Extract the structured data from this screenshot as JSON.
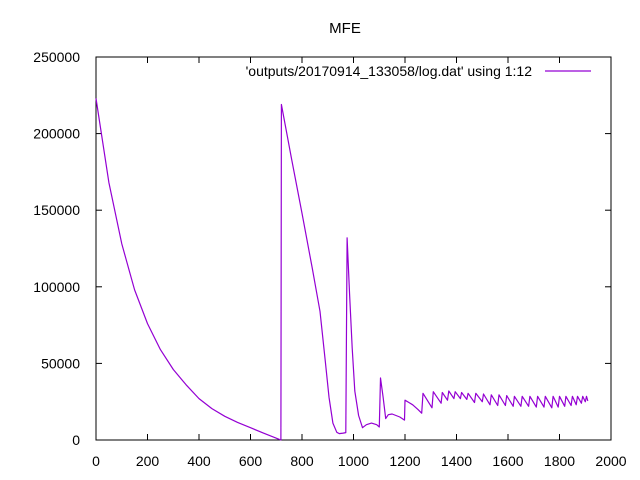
{
  "chart_data": {
    "type": "line",
    "title": "MFE",
    "xlabel": "",
    "ylabel": "",
    "xlim": [
      0,
      2000
    ],
    "ylim": [
      0,
      250000
    ],
    "xticks": [
      0,
      200,
      400,
      600,
      800,
      1000,
      1200,
      1400,
      1600,
      1800,
      2000
    ],
    "yticks": [
      0,
      50000,
      100000,
      150000,
      200000,
      250000
    ],
    "grid": false,
    "legend_position": "top-right",
    "series": [
      {
        "name": "'outputs/20170914_133058/log.dat' using 1:12",
        "color": "#9400d3",
        "points": [
          [
            0,
            223000
          ],
          [
            50,
            168000
          ],
          [
            100,
            128000
          ],
          [
            150,
            98000
          ],
          [
            200,
            76000
          ],
          [
            250,
            59000
          ],
          [
            300,
            46000
          ],
          [
            350,
            36000
          ],
          [
            400,
            27000
          ],
          [
            450,
            20500
          ],
          [
            500,
            15500
          ],
          [
            550,
            11500
          ],
          [
            600,
            8000
          ],
          [
            650,
            4500
          ],
          [
            700,
            1200
          ],
          [
            718,
            0
          ],
          [
            720,
            219000
          ],
          [
            760,
            183000
          ],
          [
            800,
            148000
          ],
          [
            840,
            112000
          ],
          [
            870,
            84000
          ],
          [
            890,
            52000
          ],
          [
            905,
            28000
          ],
          [
            920,
            11000
          ],
          [
            935,
            5000
          ],
          [
            945,
            4200
          ],
          [
            960,
            4500
          ],
          [
            970,
            4800
          ],
          [
            975,
            132000
          ],
          [
            985,
            95000
          ],
          [
            995,
            60000
          ],
          [
            1005,
            32000
          ],
          [
            1020,
            16000
          ],
          [
            1035,
            8000
          ],
          [
            1050,
            10000
          ],
          [
            1070,
            11000
          ],
          [
            1090,
            10000
          ],
          [
            1100,
            8500
          ],
          [
            1105,
            40500
          ],
          [
            1115,
            28000
          ],
          [
            1125,
            14000
          ],
          [
            1135,
            16500
          ],
          [
            1150,
            17000
          ],
          [
            1165,
            16000
          ],
          [
            1180,
            15000
          ],
          [
            1198,
            13000
          ],
          [
            1200,
            26000
          ],
          [
            1215,
            24500
          ],
          [
            1230,
            23000
          ],
          [
            1250,
            20000
          ],
          [
            1265,
            17500
          ],
          [
            1270,
            30500
          ],
          [
            1305,
            21000
          ],
          [
            1310,
            31500
          ],
          [
            1340,
            24000
          ],
          [
            1345,
            31000
          ],
          [
            1365,
            26000
          ],
          [
            1370,
            32000
          ],
          [
            1390,
            27000
          ],
          [
            1395,
            31500
          ],
          [
            1415,
            27000
          ],
          [
            1420,
            31000
          ],
          [
            1440,
            26500
          ],
          [
            1445,
            30500
          ],
          [
            1470,
            24500
          ],
          [
            1475,
            30500
          ],
          [
            1500,
            25000
          ],
          [
            1505,
            30000
          ],
          [
            1530,
            23000
          ],
          [
            1535,
            29500
          ],
          [
            1560,
            22500
          ],
          [
            1565,
            29500
          ],
          [
            1590,
            22500
          ],
          [
            1595,
            29000
          ],
          [
            1620,
            22000
          ],
          [
            1625,
            28500
          ],
          [
            1650,
            22000
          ],
          [
            1655,
            28500
          ],
          [
            1680,
            22000
          ],
          [
            1685,
            28500
          ],
          [
            1710,
            21500
          ],
          [
            1715,
            28500
          ],
          [
            1740,
            21500
          ],
          [
            1745,
            28500
          ],
          [
            1770,
            21000
          ],
          [
            1775,
            28500
          ],
          [
            1795,
            21500
          ],
          [
            1800,
            28500
          ],
          [
            1820,
            22000
          ],
          [
            1825,
            28500
          ],
          [
            1845,
            22500
          ],
          [
            1850,
            28500
          ],
          [
            1865,
            23000
          ],
          [
            1870,
            28500
          ],
          [
            1885,
            24000
          ],
          [
            1890,
            28500
          ],
          [
            1900,
            25000
          ],
          [
            1905,
            28500
          ],
          [
            1910,
            25500
          ]
        ]
      }
    ]
  }
}
